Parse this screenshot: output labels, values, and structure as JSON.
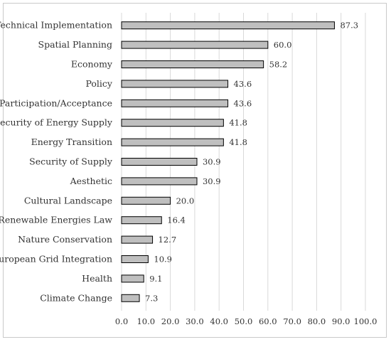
{
  "chart_data": {
    "type": "bar",
    "orientation": "horizontal",
    "categories": [
      "Technical Implementation",
      "Spatial Planning",
      "Economy",
      "Policy",
      "Participation/Acceptance",
      "Security of Energy Supply",
      "Energy Transition",
      "Security of Supply",
      "Aesthetic",
      "Cultural Landscape",
      "Renewable Energies Law",
      "Nature Conservation",
      "European Grid Integration",
      "Health",
      "Climate Change"
    ],
    "values": [
      87.3,
      60.0,
      58.2,
      43.6,
      43.6,
      41.8,
      41.8,
      30.9,
      30.9,
      20.0,
      16.4,
      12.7,
      10.9,
      9.1,
      7.3
    ],
    "value_labels": [
      "87.3",
      "60.0",
      "58.2",
      "43.6",
      "43.6",
      "41.8",
      "41.8",
      "30.9",
      "30.9",
      "20.0",
      "16.4",
      "12.7",
      "10.9",
      "9.1",
      "7.3"
    ],
    "x_ticks": [
      "0.0",
      "10.0",
      "20.0",
      "30.0",
      "40.0",
      "50.0",
      "60.0",
      "70.0",
      "80.0",
      "90.0",
      "100.0"
    ],
    "xlim": [
      0,
      100
    ],
    "grid": "vertical",
    "bar_color": "#bfbfbf",
    "bar_edge_color": "#000000",
    "grid_color": "#d9d9d9"
  }
}
